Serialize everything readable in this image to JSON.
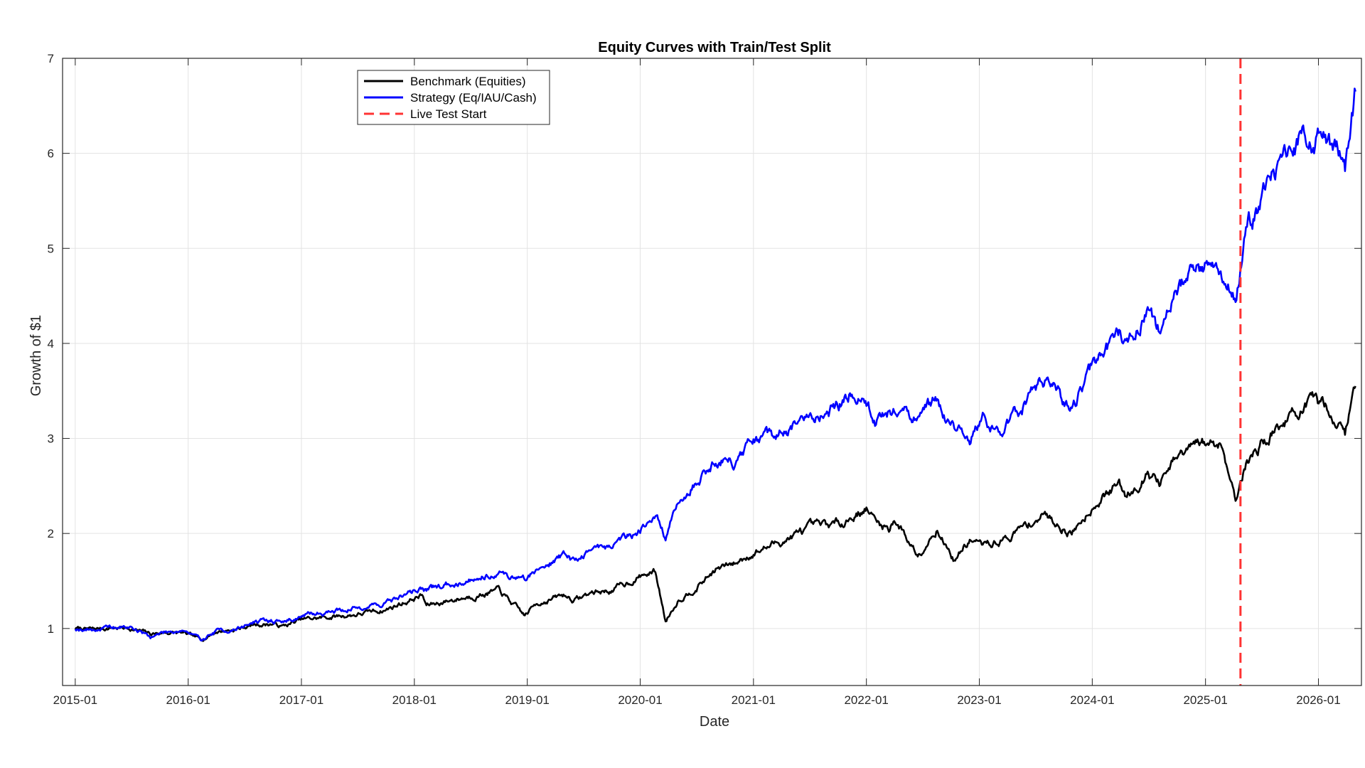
{
  "chart_data": {
    "type": "line",
    "title": "Equity Curves with Train/Test Split",
    "xlabel": "Date",
    "ylabel": "Growth of $1",
    "xlim": [
      "2014-11-21",
      "2026-05-20"
    ],
    "ylim": [
      0.4,
      7
    ],
    "grid": true,
    "legend_position": "top-left",
    "x_tick_labels": [
      "2015-01",
      "2016-01",
      "2017-01",
      "2018-01",
      "2019-01",
      "2020-01",
      "2021-01",
      "2022-01",
      "2023-01",
      "2024-01",
      "2025-01",
      "2026-01"
    ],
    "y_ticks": [
      1,
      2,
      3,
      4,
      5,
      6,
      7
    ],
    "series": [
      {
        "name": "Benchmark (Equities)",
        "color": "#000000",
        "points": [
          [
            "2015-01-01",
            1.0
          ],
          [
            "2015-03-01",
            0.99
          ],
          [
            "2015-05-01",
            1.01
          ],
          [
            "2015-07-01",
            1.0
          ],
          [
            "2015-09-01",
            0.94
          ],
          [
            "2015-10-15",
            0.96
          ],
          [
            "2015-12-15",
            0.95
          ],
          [
            "2016-02-10",
            0.88
          ],
          [
            "2016-04-01",
            0.97
          ],
          [
            "2016-06-01",
            0.99
          ],
          [
            "2016-08-01",
            1.04
          ],
          [
            "2016-10-01",
            1.05
          ],
          [
            "2016-11-01",
            1.02
          ],
          [
            "2017-01-01",
            1.09
          ],
          [
            "2017-04-01",
            1.12
          ],
          [
            "2017-07-01",
            1.15
          ],
          [
            "2017-10-01",
            1.2
          ],
          [
            "2018-01-26",
            1.35
          ],
          [
            "2018-02-09",
            1.24
          ],
          [
            "2018-05-01",
            1.3
          ],
          [
            "2018-08-01",
            1.36
          ],
          [
            "2018-09-30",
            1.4
          ],
          [
            "2018-11-01",
            1.3
          ],
          [
            "2018-12-24",
            1.13
          ],
          [
            "2019-02-01",
            1.27
          ],
          [
            "2019-05-01",
            1.35
          ],
          [
            "2019-06-01",
            1.3
          ],
          [
            "2019-08-01",
            1.38
          ],
          [
            "2019-10-01",
            1.4
          ],
          [
            "2020-01-01",
            1.55
          ],
          [
            "2020-02-19",
            1.6
          ],
          [
            "2020-03-23",
            1.08
          ],
          [
            "2020-05-01",
            1.3
          ],
          [
            "2020-07-01",
            1.44
          ],
          [
            "2020-09-01",
            1.62
          ],
          [
            "2020-11-01",
            1.68
          ],
          [
            "2021-01-01",
            1.8
          ],
          [
            "2021-04-01",
            1.92
          ],
          [
            "2021-07-01",
            2.05
          ],
          [
            "2021-10-01",
            2.1
          ],
          [
            "2022-01-01",
            2.27
          ],
          [
            "2022-02-01",
            2.12
          ],
          [
            "2022-03-15",
            2.05
          ],
          [
            "2022-04-01",
            2.16
          ],
          [
            "2022-06-16",
            1.78
          ],
          [
            "2022-08-15",
            2.06
          ],
          [
            "2022-10-12",
            1.72
          ],
          [
            "2022-12-01",
            1.93
          ],
          [
            "2023-01-15",
            1.87
          ],
          [
            "2023-04-01",
            1.95
          ],
          [
            "2023-07-01",
            2.15
          ],
          [
            "2023-08-01",
            2.2
          ],
          [
            "2023-10-27",
            2.0
          ],
          [
            "2024-01-01",
            2.3
          ],
          [
            "2024-03-28",
            2.52
          ],
          [
            "2024-04-19",
            2.4
          ],
          [
            "2024-07-01",
            2.65
          ],
          [
            "2024-08-05",
            2.52
          ],
          [
            "2024-10-01",
            2.78
          ],
          [
            "2024-12-06",
            2.93
          ],
          [
            "2025-02-19",
            2.96
          ],
          [
            "2025-04-08",
            2.4
          ],
          [
            "2025-05-15",
            2.75
          ],
          [
            "2025-07-01",
            2.95
          ],
          [
            "2025-09-01",
            3.15
          ],
          [
            "2025-11-01",
            3.3
          ],
          [
            "2025-12-15",
            3.34
          ],
          [
            "2026-02-01",
            3.33
          ],
          [
            "2026-03-10",
            3.15
          ],
          [
            "2026-03-28",
            3.05
          ],
          [
            "2026-05-01",
            3.55
          ]
        ]
      },
      {
        "name": "Strategy (Eq/IAU/Cash)",
        "color": "#0000ff",
        "points": [
          [
            "2015-01-01",
            1.0
          ],
          [
            "2015-03-01",
            0.99
          ],
          [
            "2015-05-01",
            1.01
          ],
          [
            "2015-07-01",
            1.01
          ],
          [
            "2015-09-01",
            0.91
          ],
          [
            "2015-10-15",
            0.96
          ],
          [
            "2015-12-15",
            0.99
          ],
          [
            "2016-02-10",
            0.88
          ],
          [
            "2016-04-01",
            0.97
          ],
          [
            "2016-06-01",
            0.99
          ],
          [
            "2016-08-01",
            1.07
          ],
          [
            "2016-10-01",
            1.08
          ],
          [
            "2016-11-01",
            1.07
          ],
          [
            "2017-01-01",
            1.13
          ],
          [
            "2017-04-01",
            1.18
          ],
          [
            "2017-07-01",
            1.22
          ],
          [
            "2017-10-01",
            1.27
          ],
          [
            "2018-01-26",
            1.43
          ],
          [
            "2018-02-09",
            1.4
          ],
          [
            "2018-05-01",
            1.47
          ],
          [
            "2018-08-01",
            1.55
          ],
          [
            "2018-09-30",
            1.6
          ],
          [
            "2018-11-01",
            1.55
          ],
          [
            "2018-12-24",
            1.52
          ],
          [
            "2019-02-01",
            1.62
          ],
          [
            "2019-05-01",
            1.78
          ],
          [
            "2019-06-01",
            1.7
          ],
          [
            "2019-08-01",
            1.85
          ],
          [
            "2019-10-01",
            1.88
          ],
          [
            "2020-01-01",
            2.05
          ],
          [
            "2020-02-19",
            2.2
          ],
          [
            "2020-03-23",
            1.95
          ],
          [
            "2020-05-01",
            2.3
          ],
          [
            "2020-07-01",
            2.55
          ],
          [
            "2020-09-01",
            2.78
          ],
          [
            "2020-11-01",
            2.75
          ],
          [
            "2021-01-01",
            2.95
          ],
          [
            "2021-04-01",
            3.05
          ],
          [
            "2021-07-01",
            3.2
          ],
          [
            "2021-10-01",
            3.35
          ],
          [
            "2021-11-15",
            3.52
          ],
          [
            "2022-01-01",
            3.38
          ],
          [
            "2022-02-01",
            3.2
          ],
          [
            "2022-04-01",
            3.3
          ],
          [
            "2022-06-15",
            3.2
          ],
          [
            "2022-08-15",
            3.38
          ],
          [
            "2022-10-12",
            3.12
          ],
          [
            "2022-12-01",
            3.0
          ],
          [
            "2023-01-15",
            3.2
          ],
          [
            "2023-03-01",
            3.05
          ],
          [
            "2023-05-01",
            3.25
          ],
          [
            "2023-08-01",
            3.6
          ],
          [
            "2023-10-27",
            3.28
          ],
          [
            "2024-01-01",
            3.75
          ],
          [
            "2024-03-28",
            4.1
          ],
          [
            "2024-04-19",
            3.95
          ],
          [
            "2024-07-01",
            4.35
          ],
          [
            "2024-08-05",
            4.15
          ],
          [
            "2024-10-01",
            4.55
          ],
          [
            "2024-12-06",
            4.8
          ],
          [
            "2025-02-19",
            4.85
          ],
          [
            "2025-04-08",
            4.45
          ],
          [
            "2025-05-15",
            5.25
          ],
          [
            "2025-07-01",
            5.5
          ],
          [
            "2025-09-01",
            5.85
          ],
          [
            "2025-11-01",
            6.1
          ],
          [
            "2025-12-15",
            6.2
          ],
          [
            "2026-02-01",
            6.15
          ],
          [
            "2026-03-10",
            5.95
          ],
          [
            "2026-03-28",
            5.7
          ],
          [
            "2026-05-01",
            6.65
          ]
        ]
      },
      {
        "name": "Live Test Start",
        "color": "#ff3333",
        "style": "dashed-vertical",
        "x": "2025-04-24"
      }
    ]
  }
}
